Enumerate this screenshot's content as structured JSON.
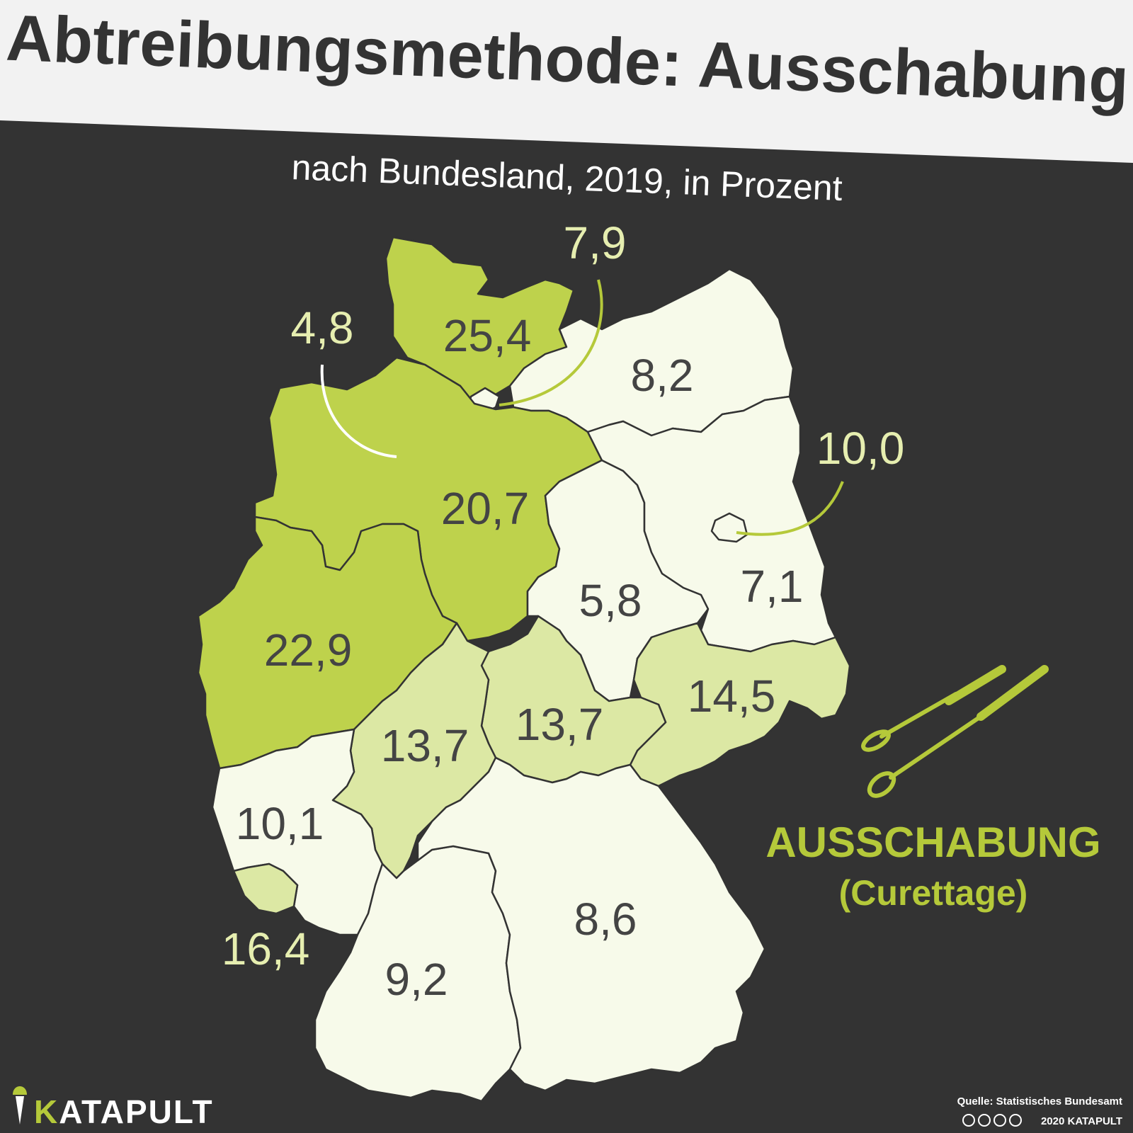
{
  "title": "Abtreibungsmethode: Ausschabung",
  "subtitle": "nach Bundesland, 2019, in Prozent",
  "colors": {
    "background": "#333333",
    "title_band": "#f2f2f2",
    "title_text": "#333333",
    "accent": "#b5c93a",
    "outside_label": "#e6eeb0",
    "scale": [
      "#f7faea",
      "#dce8a4",
      "#bed24c"
    ]
  },
  "map_data": {
    "type": "choropleth",
    "region": "Deutschland",
    "unit": "Prozent",
    "year": "2019",
    "states": [
      {
        "id": "SH",
        "value": "25,4",
        "class": "high"
      },
      {
        "id": "HH",
        "value": "7,9",
        "class": "low"
      },
      {
        "id": "MV",
        "value": "8,2",
        "class": "low"
      },
      {
        "id": "HB",
        "value": "4,8",
        "class": "low"
      },
      {
        "id": "NI",
        "value": "20,7",
        "class": "high"
      },
      {
        "id": "BB",
        "value": "7,1",
        "class": "low"
      },
      {
        "id": "BE",
        "value": "10,0",
        "class": "low"
      },
      {
        "id": "ST",
        "value": "5,8",
        "class": "low"
      },
      {
        "id": "NW",
        "value": "22,9",
        "class": "high"
      },
      {
        "id": "SN",
        "value": "14,5",
        "class": "mid"
      },
      {
        "id": "TH",
        "value": "13,7",
        "class": "mid"
      },
      {
        "id": "HE",
        "value": "13,7",
        "class": "mid"
      },
      {
        "id": "RP",
        "value": "10,1",
        "class": "low"
      },
      {
        "id": "SL",
        "value": "16,4",
        "class": "mid"
      },
      {
        "id": "BY",
        "value": "8,6",
        "class": "low"
      },
      {
        "id": "BW",
        "value": "9,2",
        "class": "low"
      }
    ]
  },
  "legend": {
    "icon": "curette-icon",
    "title": "AUSSCHABUNG",
    "subtitle": "(Curettage)"
  },
  "brand": {
    "icon": "katapult-logo-icon",
    "name": "KATAPULT",
    "initial": "K",
    "rest": "ATAPULT"
  },
  "source": {
    "line1": "Quelle: Statistisches Bundesamt",
    "line2": "2020 KATAPULT",
    "license_icons": "cc-by-nc-nd-icons"
  }
}
